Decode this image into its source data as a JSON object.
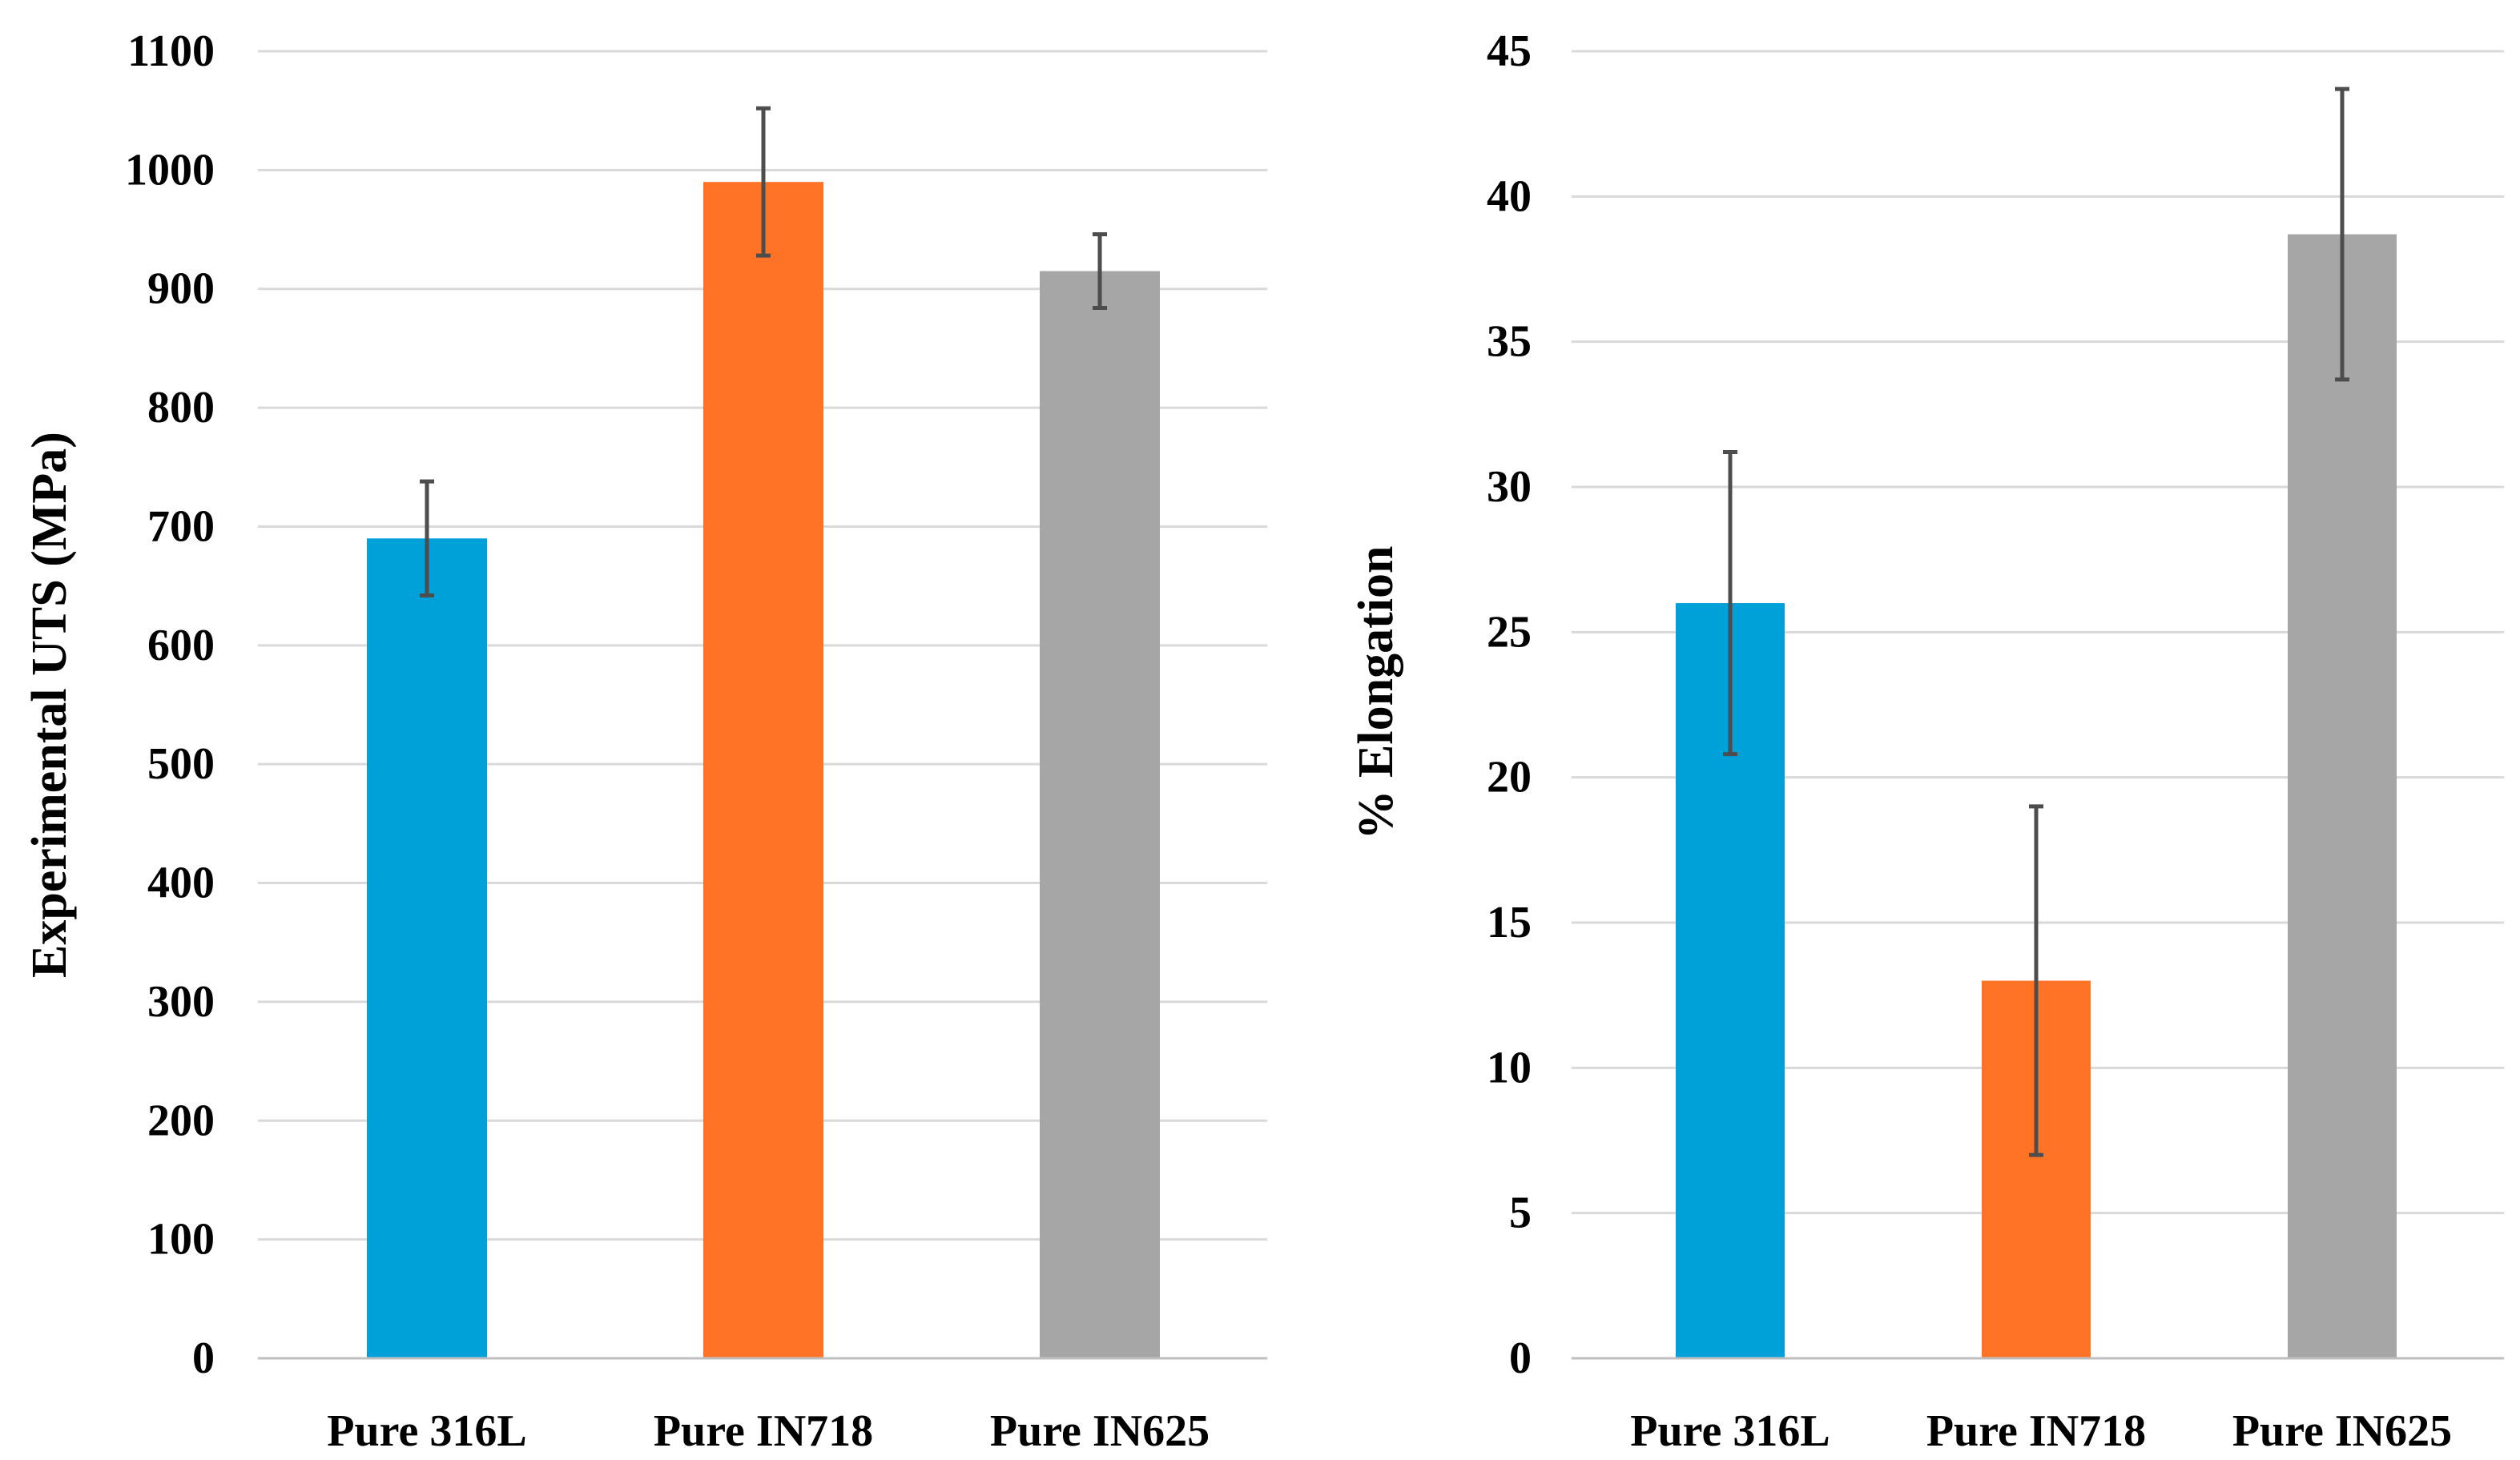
{
  "chart_data": [
    {
      "type": "bar",
      "categories": [
        "Pure 316L",
        "Pure IN718",
        "Pure IN625"
      ],
      "values": [
        690,
        990,
        915
      ],
      "errors": [
        48,
        62,
        31
      ],
      "colors": [
        "#00a0d8",
        "#ff7327",
        "#a6a6a6"
      ],
      "xlabel": "",
      "ylabel": "Experimental UTS (MPa)",
      "ylim": [
        0,
        1100
      ],
      "yticks": [
        "0",
        "100",
        "200",
        "300",
        "400",
        "500",
        "600",
        "700",
        "800",
        "900",
        "1000",
        "1100"
      ],
      "grid": true
    },
    {
      "type": "bar",
      "categories": [
        "Pure 316L",
        "Pure IN718",
        "Pure IN625"
      ],
      "values": [
        26,
        13,
        38.7
      ],
      "errors": [
        5.2,
        6,
        5
      ],
      "colors": [
        "#00a0d8",
        "#ff7327",
        "#a6a6a6"
      ],
      "xlabel": "",
      "ylabel": "% Elongation",
      "ylim": [
        0,
        45
      ],
      "yticks": [
        "0",
        "5",
        "10",
        "15",
        "20",
        "25",
        "30",
        "35",
        "40",
        "45"
      ],
      "grid": true
    }
  ]
}
